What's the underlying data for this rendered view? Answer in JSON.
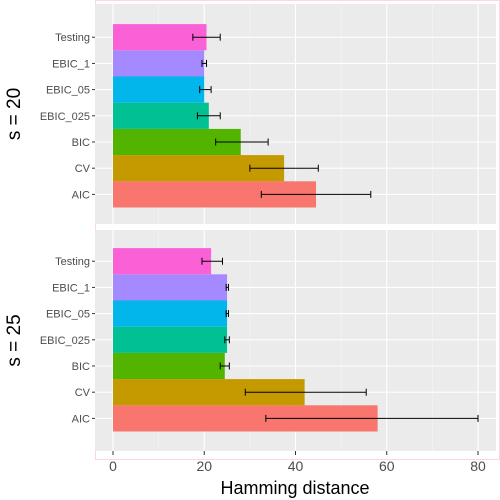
{
  "chart_data": {
    "type": "bar",
    "orientation": "horizontal",
    "xlabel": "Hamming distance",
    "xlim": [
      0,
      80
    ],
    "x_ticks": [
      0,
      20,
      40,
      60,
      80
    ],
    "grid": true,
    "categories": [
      "AIC",
      "CV",
      "BIC",
      "EBIC_025",
      "EBIC_05",
      "EBIC_1",
      "Testing"
    ],
    "colors": {
      "AIC": "#f8766d",
      "CV": "#c49a00",
      "BIC": "#53b400",
      "EBIC_025": "#00c094",
      "EBIC_05": "#00b6eb",
      "EBIC_1": "#a58aff",
      "Testing": "#fb61d7"
    },
    "panels": [
      {
        "label": "s = 20",
        "values": [
          44.5,
          37.5,
          28.0,
          21.0,
          20.0,
          20.0,
          20.5
        ],
        "err_low": [
          32.5,
          30.0,
          22.5,
          18.5,
          19.0,
          19.5,
          17.5
        ],
        "err_high": [
          56.5,
          45.0,
          34.0,
          23.5,
          21.5,
          20.5,
          23.5
        ]
      },
      {
        "label": "s = 25",
        "values": [
          58.0,
          42.0,
          24.5,
          25.0,
          25.0,
          25.0,
          21.5
        ],
        "err_low": [
          33.5,
          29.0,
          23.5,
          24.5,
          24.8,
          24.8,
          19.5
        ],
        "err_high": [
          80.0,
          55.5,
          25.5,
          25.5,
          25.3,
          25.3,
          24.0
        ]
      }
    ]
  }
}
